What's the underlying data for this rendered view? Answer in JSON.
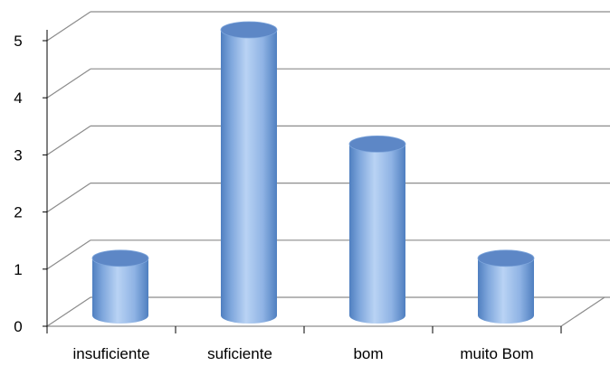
{
  "chart_data": {
    "type": "bar",
    "style": "3d-cylinder",
    "categories": [
      "insuficiente",
      "suficiente",
      "bom",
      "muito Bom"
    ],
    "values": [
      1,
      5,
      3,
      1
    ],
    "ylim": [
      0,
      5
    ],
    "yticks": [
      "0",
      "1",
      "2",
      "3",
      "4",
      "5"
    ],
    "title": "",
    "xlabel": "",
    "ylabel": "",
    "grid": true,
    "legend": "none",
    "colors": {
      "bar_light": "#b9d3f4",
      "bar_mid": "#7ea6dc",
      "bar_dark": "#4f7fc0",
      "bar_top": "#5d87c6",
      "grid": "#8c8c8c"
    }
  }
}
